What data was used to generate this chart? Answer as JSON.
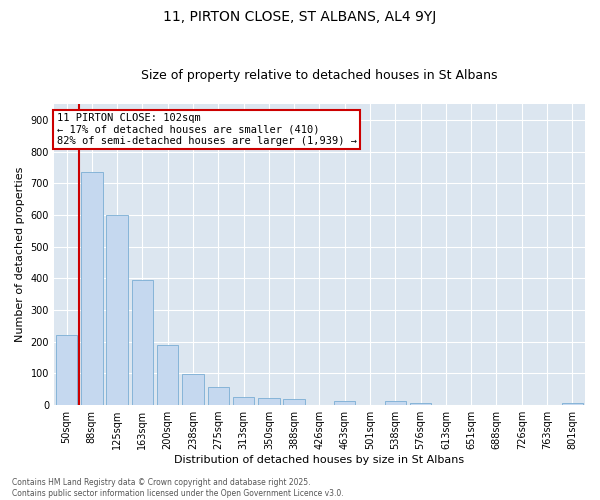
{
  "title": "11, PIRTON CLOSE, ST ALBANS, AL4 9YJ",
  "subtitle": "Size of property relative to detached houses in St Albans",
  "xlabel": "Distribution of detached houses by size in St Albans",
  "ylabel": "Number of detached properties",
  "bar_labels": [
    "50sqm",
    "88sqm",
    "125sqm",
    "163sqm",
    "200sqm",
    "238sqm",
    "275sqm",
    "313sqm",
    "350sqm",
    "388sqm",
    "426sqm",
    "463sqm",
    "501sqm",
    "538sqm",
    "576sqm",
    "613sqm",
    "651sqm",
    "688sqm",
    "726sqm",
    "763sqm",
    "801sqm"
  ],
  "bar_values": [
    220,
    735,
    600,
    395,
    190,
    98,
    57,
    27,
    22,
    20,
    0,
    12,
    0,
    12,
    7,
    0,
    0,
    0,
    0,
    0,
    7
  ],
  "bar_color": "#c5d8ef",
  "bar_edge_color": "#7aadd4",
  "vline_color": "#cc0000",
  "annotation_text": "11 PIRTON CLOSE: 102sqm\n← 17% of detached houses are smaller (410)\n82% of semi-detached houses are larger (1,939) →",
  "annotation_box_color": "#cc0000",
  "ylim": [
    0,
    950
  ],
  "yticks": [
    0,
    100,
    200,
    300,
    400,
    500,
    600,
    700,
    800,
    900
  ],
  "plot_bg_color": "#dce6f0",
  "footer_line1": "Contains HM Land Registry data © Crown copyright and database right 2025.",
  "footer_line2": "Contains public sector information licensed under the Open Government Licence v3.0.",
  "title_fontsize": 10,
  "subtitle_fontsize": 9,
  "tick_fontsize": 7,
  "label_fontsize": 8,
  "annot_fontsize": 7.5
}
